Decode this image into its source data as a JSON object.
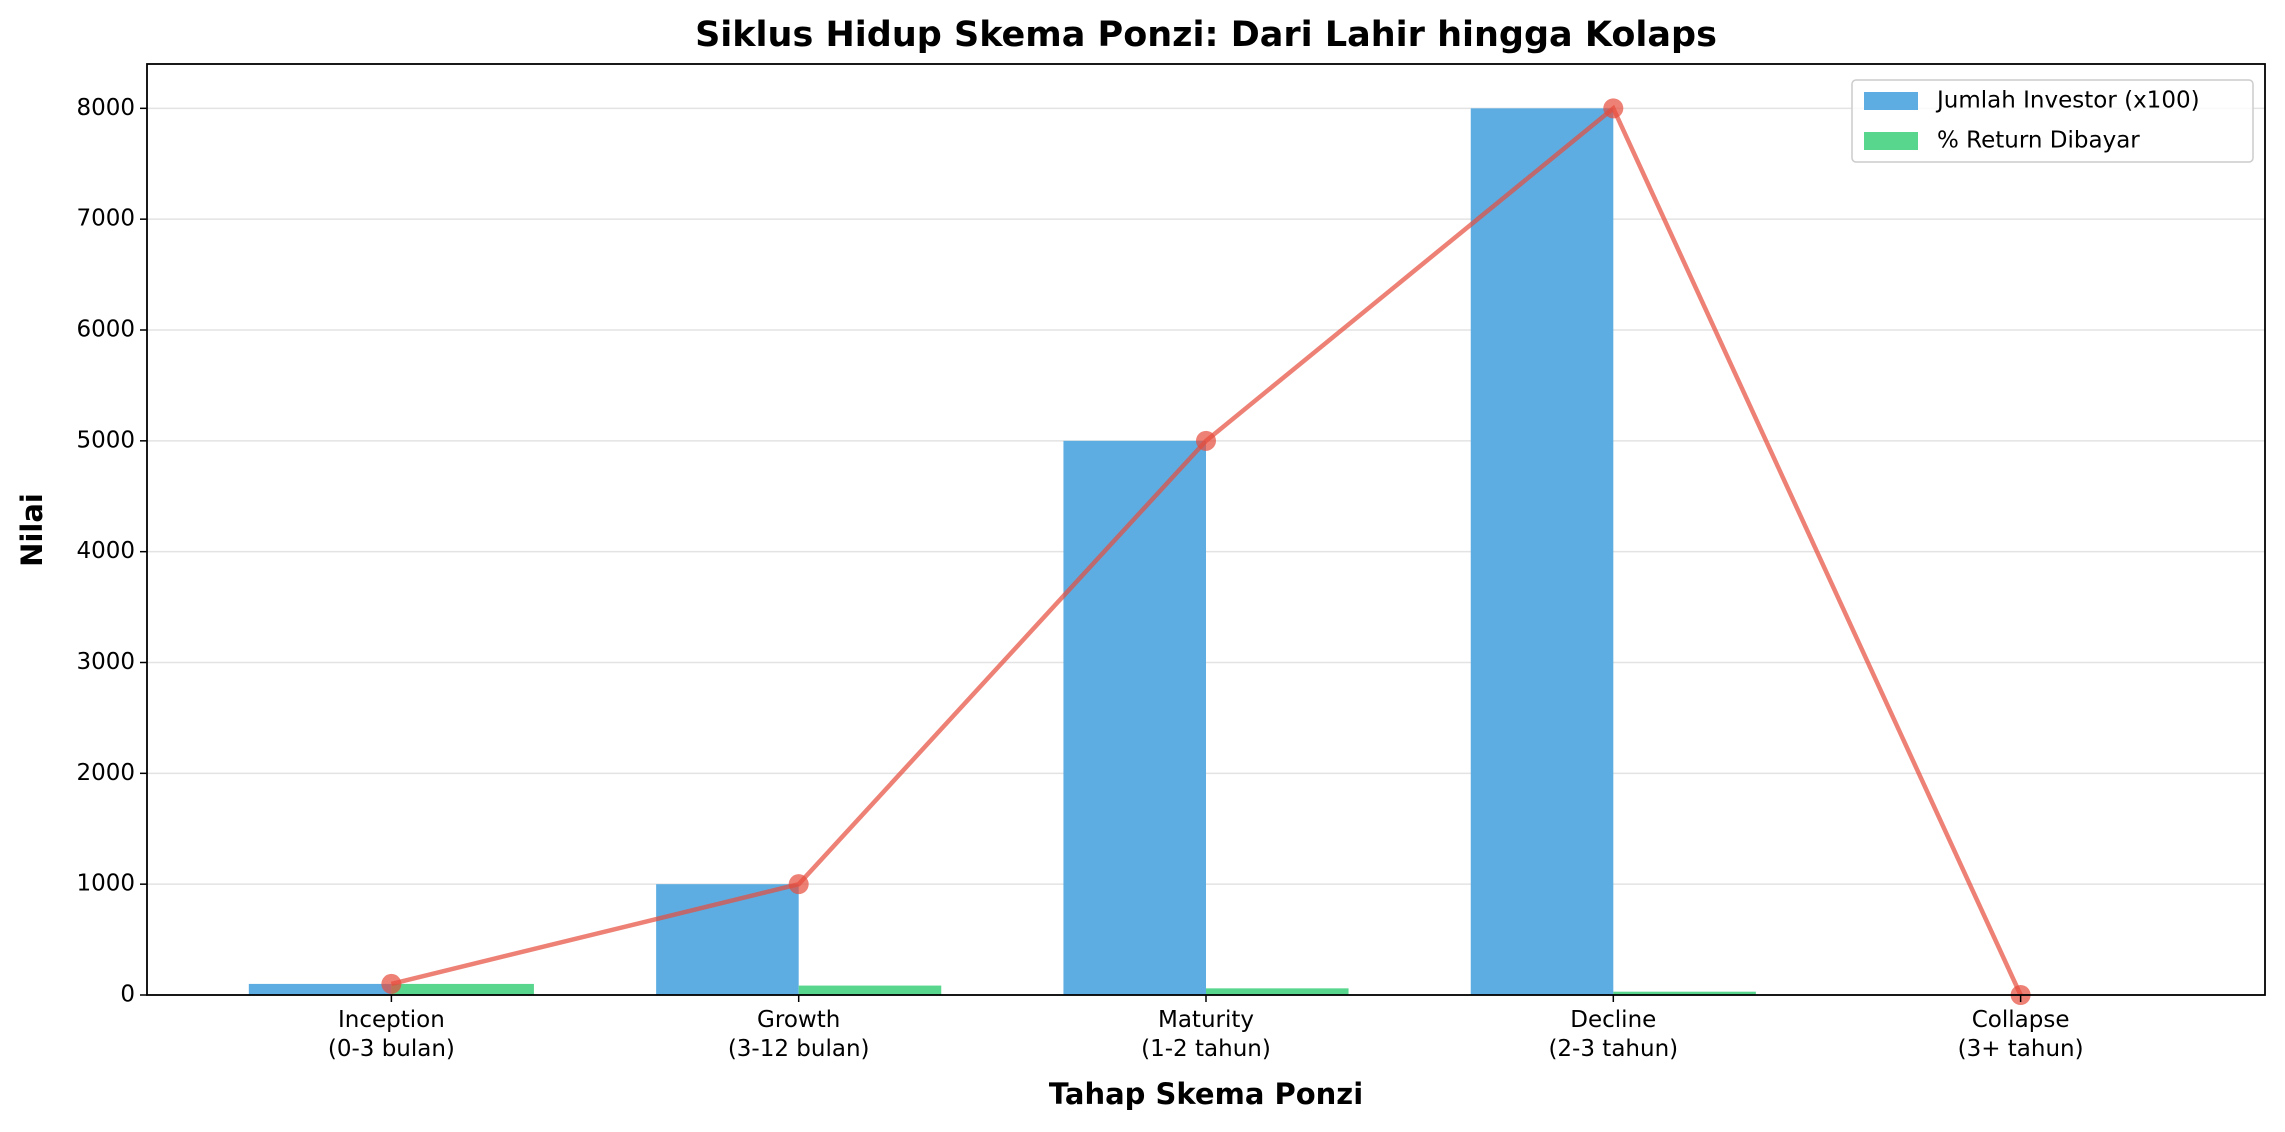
{
  "chart_data": {
    "type": "bar",
    "title": "Siklus Hidup Skema Ponzi: Dari Lahir hingga Kolaps",
    "xlabel": "Tahap Skema Ponzi",
    "ylabel": "Nilai",
    "categories": [
      "Inception\n(0-3 bulan)",
      "Growth\n(3-12 bulan)",
      "Maturity\n(1-2 tahun)",
      "Decline\n(2-3 tahun)",
      "Collapse\n(3+ tahun)"
    ],
    "series": [
      {
        "name": "Jumlah Investor (x100)",
        "color": "#5dade2",
        "values": [
          100,
          1000,
          5000,
          8000,
          0
        ]
      },
      {
        "name": "% Return Dibayar",
        "color": "#58d68d",
        "values": [
          100,
          85,
          60,
          30,
          0
        ]
      }
    ],
    "line": {
      "color": "#e74c3c",
      "values": [
        100,
        1000,
        5000,
        8000,
        0
      ]
    },
    "ylim": [
      0,
      8400
    ],
    "yticks": [
      0,
      1000,
      2000,
      3000,
      4000,
      5000,
      6000,
      7000,
      8000
    ],
    "grid": true,
    "legend": "upper right"
  }
}
